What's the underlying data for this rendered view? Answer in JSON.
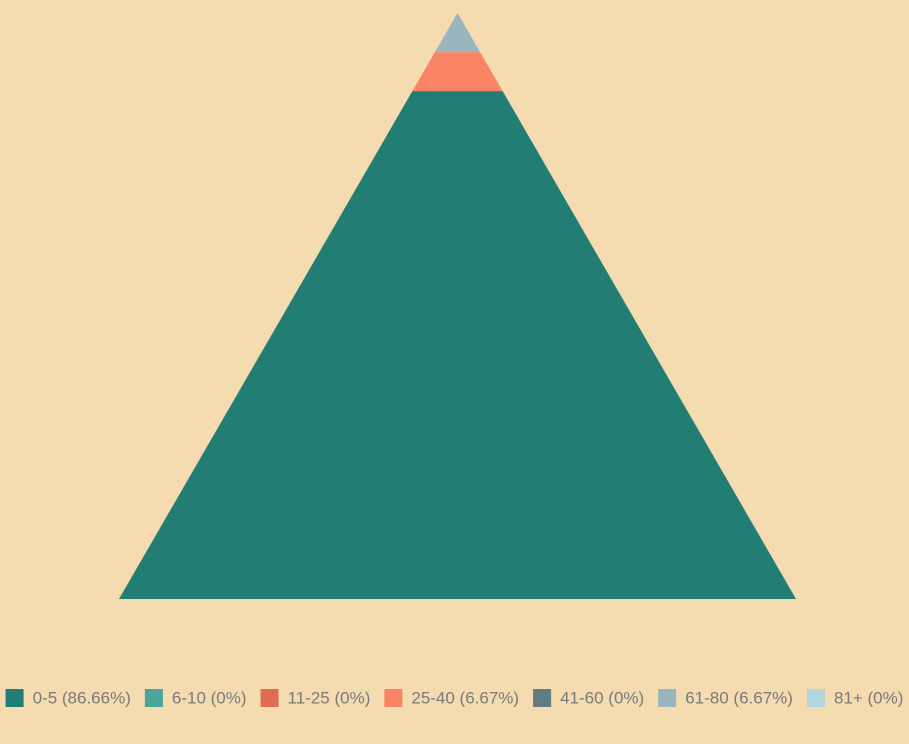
{
  "chart_data": {
    "type": "pyramid",
    "values": [
      86.66,
      0,
      0,
      6.67,
      0,
      6.67,
      0
    ],
    "value_labels": [
      "0-5 (86.66%)",
      "6-10 (0%)",
      "11-25 (0%)",
      "25-40 (6.67%)",
      "41-60 (0%)",
      "61-80 (6.67%)",
      "81+ (0%)"
    ],
    "colors": [
      "#227d74",
      "#4aa59a",
      "#e06b4e",
      "#fa8566",
      "#607d86",
      "#9ab5bd",
      "#b3d7e0"
    ],
    "legend": "bottom"
  }
}
